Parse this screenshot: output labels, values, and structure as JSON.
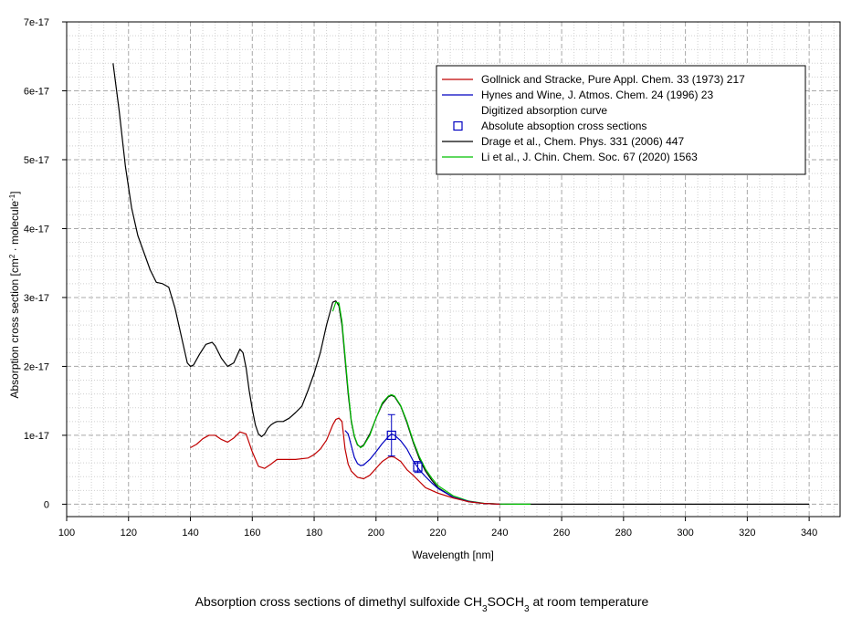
{
  "chart_data": {
    "type": "line",
    "title": "",
    "caption": {
      "prefix": "Absorption cross sections of dimethyl sulfoxide CH",
      "sub1": "3",
      "mid": "SOCH",
      "sub2": "3",
      "suffix": " at room temperature"
    },
    "xlabel": "Wavelength [nm]",
    "ylabel": {
      "prefix": "Absorption cross section [cm",
      "sup1": "2",
      "mid": " · molecule",
      "sup2": "-1",
      "suffix": "]"
    },
    "xlim": [
      100,
      350
    ],
    "ylim": [
      -1.8e-18,
      7e-17
    ],
    "grid": true,
    "legend_position": "top-right",
    "x_ticks": [
      100,
      120,
      140,
      160,
      180,
      200,
      220,
      240,
      260,
      280,
      300,
      320,
      340
    ],
    "x_tick_labels": [
      "100",
      "120",
      "140",
      "160",
      "180",
      "200",
      "220",
      "240",
      "260",
      "280",
      "300",
      "320",
      "340"
    ],
    "y_ticks": [
      0,
      1e-17,
      2e-17,
      3e-17,
      4e-17,
      5e-17,
      6e-17,
      7e-17
    ],
    "y_tick_labels": [
      "0",
      "1e-17",
      "2e-17",
      "3e-17",
      "4e-17",
      "5e-17",
      "6e-17",
      "7e-17"
    ],
    "series": [
      {
        "name": "Drage et al., Chem. Phys. 331 (2006) 447",
        "color": "#000000",
        "x": [
          115,
          117,
          119,
          121,
          123,
          125,
          127,
          129,
          131,
          133,
          135,
          137,
          139,
          140,
          141,
          143,
          145,
          147,
          148,
          150,
          152,
          154,
          156,
          157,
          158,
          159,
          160,
          161,
          162,
          163,
          164,
          165,
          166,
          167,
          168,
          170,
          172,
          174,
          176,
          178,
          180,
          182,
          184,
          186,
          187,
          188,
          189,
          190,
          191,
          192,
          193,
          194,
          195,
          196,
          198,
          200,
          202,
          204,
          205,
          206,
          208,
          210,
          212,
          214,
          216,
          218,
          220,
          225,
          230,
          235,
          240,
          245,
          250,
          260,
          280,
          300,
          320,
          340
        ],
        "y": [
          6.4e-17,
          5.7e-17,
          4.9e-17,
          4.3e-17,
          3.9e-17,
          3.65e-17,
          3.4e-17,
          3.22e-17,
          3.2e-17,
          3.15e-17,
          2.85e-17,
          2.45e-17,
          2.05e-17,
          2e-17,
          2.02e-17,
          2.18e-17,
          2.32e-17,
          2.35e-17,
          2.3e-17,
          2.12e-17,
          2e-17,
          2.05e-17,
          2.25e-17,
          2.2e-17,
          1.98e-17,
          1.65e-17,
          1.38e-17,
          1.15e-17,
          1.02e-17,
          9.8e-18,
          1.02e-17,
          1.1e-17,
          1.15e-17,
          1.18e-17,
          1.2e-17,
          1.2e-17,
          1.25e-17,
          1.33e-17,
          1.42e-17,
          1.65e-17,
          1.9e-17,
          2.2e-17,
          2.6e-17,
          2.93e-17,
          2.95e-17,
          2.88e-17,
          2.6e-17,
          2.1e-17,
          1.6e-17,
          1.2e-17,
          9.8e-18,
          8.6e-18,
          8.3e-18,
          8.6e-18,
          1.02e-17,
          1.25e-17,
          1.45e-17,
          1.56e-17,
          1.58e-17,
          1.56e-17,
          1.42e-17,
          1.18e-17,
          9e-18,
          6.6e-18,
          4.8e-18,
          3.5e-18,
          2.4e-18,
          1e-18,
          3.5e-19,
          1e-19,
          2e-20,
          0,
          0,
          0,
          0,
          0,
          0,
          0
        ]
      },
      {
        "name": "Li et al., J. Chin. Chem. Soc. 67 (2020) 1563",
        "color": "#00c000",
        "x": [
          186,
          187,
          188,
          189,
          190,
          191,
          192,
          193,
          194,
          195,
          196,
          198,
          200,
          202,
          204,
          205,
          206,
          208,
          210,
          212,
          214,
          216,
          218,
          220,
          225,
          230,
          235,
          240,
          245,
          250
        ],
        "y": [
          2.8e-17,
          2.93e-17,
          2.92e-17,
          2.65e-17,
          2.15e-17,
          1.65e-17,
          1.22e-17,
          9.9e-18,
          8.7e-18,
          8.2e-18,
          8.5e-18,
          1e-17,
          1.25e-17,
          1.47e-17,
          1.57e-17,
          1.59e-17,
          1.57e-17,
          1.43e-17,
          1.2e-17,
          9.2e-18,
          6.9e-18,
          5.1e-18,
          3.8e-18,
          2.7e-18,
          1.2e-18,
          4.5e-19,
          1.2e-19,
          3e-20,
          0,
          0
        ]
      },
      {
        "name": "Hynes and Wine, J. Atmos. Chem. 24 (1996) 23 Digitized absorption curve",
        "color": "#0000c0",
        "x": [
          190,
          191,
          192,
          193,
          194,
          195,
          196,
          198,
          200,
          202,
          204,
          205,
          206,
          208,
          210,
          212,
          214,
          216,
          218,
          220,
          225,
          230,
          235,
          240
        ],
        "y": [
          1.07e-17,
          1.02e-17,
          8.5e-18,
          6.8e-18,
          5.9e-18,
          5.6e-18,
          5.7e-18,
          6.5e-18,
          7.6e-18,
          8.8e-18,
          9.8e-18,
          1.02e-17,
          1e-17,
          9.2e-18,
          8e-18,
          6.3e-18,
          5e-18,
          4e-18,
          3.1e-18,
          2.3e-18,
          1e-18,
          4e-19,
          1e-19,
          0
        ]
      },
      {
        "name": "Gollnick and Stracke, Pure Appl. Chem. 33 (1973) 217",
        "color": "#c00000",
        "x": [
          140,
          142,
          144,
          146,
          148,
          150,
          152,
          154,
          156,
          158,
          160,
          162,
          164,
          166,
          168,
          170,
          174,
          178,
          180,
          182,
          184,
          186,
          187,
          188,
          189,
          190,
          191,
          192,
          194,
          196,
          198,
          200,
          202,
          204,
          205,
          206,
          208,
          210,
          212,
          214,
          216,
          220,
          225,
          230,
          235,
          240
        ],
        "y": [
          8.2e-18,
          8.7e-18,
          9.5e-18,
          1e-17,
          1e-17,
          9.4e-18,
          9e-18,
          9.6e-18,
          1.05e-17,
          1.02e-17,
          7.6e-18,
          5.5e-18,
          5.2e-18,
          5.8e-18,
          6.5e-18,
          6.5e-18,
          6.5e-18,
          6.7e-18,
          7.2e-18,
          8e-18,
          9.3e-18,
          1.15e-17,
          1.23e-17,
          1.25e-17,
          1.2e-17,
          8e-18,
          5.8e-18,
          4.8e-18,
          3.9e-18,
          3.7e-18,
          4.2e-18,
          5.2e-18,
          6.2e-18,
          6.8e-18,
          6.9e-18,
          6.8e-18,
          6.2e-18,
          5e-18,
          4.2e-18,
          3.3e-18,
          2.4e-18,
          1.6e-18,
          9e-19,
          3.5e-19,
          1e-19,
          0
        ]
      }
    ],
    "points": {
      "name": "Absolute absoption cross sections",
      "color": "#0000c0",
      "x": [
        205,
        213.5
      ],
      "y": [
        1e-17,
        5.4e-18
      ],
      "err": [
        3e-18,
        8e-19
      ]
    },
    "legend": [
      {
        "label": "Gollnick and Stracke, Pure Appl. Chem. 33 (1973) 217",
        "color": "#c00000",
        "marker": "line"
      },
      {
        "label": "Hynes and Wine, J. Atmos. Chem. 24 (1996) 23",
        "color": "#0000c0",
        "marker": "line"
      },
      {
        "label": "Digitized absorption curve",
        "color": "",
        "marker": "none"
      },
      {
        "label": "Absolute absoption cross sections",
        "color": "#0000c0",
        "marker": "square"
      },
      {
        "label": "Drage et al., Chem. Phys. 331 (2006) 447",
        "color": "#000000",
        "marker": "line"
      },
      {
        "label": "Li et al., J. Chin. Chem. Soc. 67 (2020) 1563",
        "color": "#00c000",
        "marker": "line"
      }
    ]
  }
}
